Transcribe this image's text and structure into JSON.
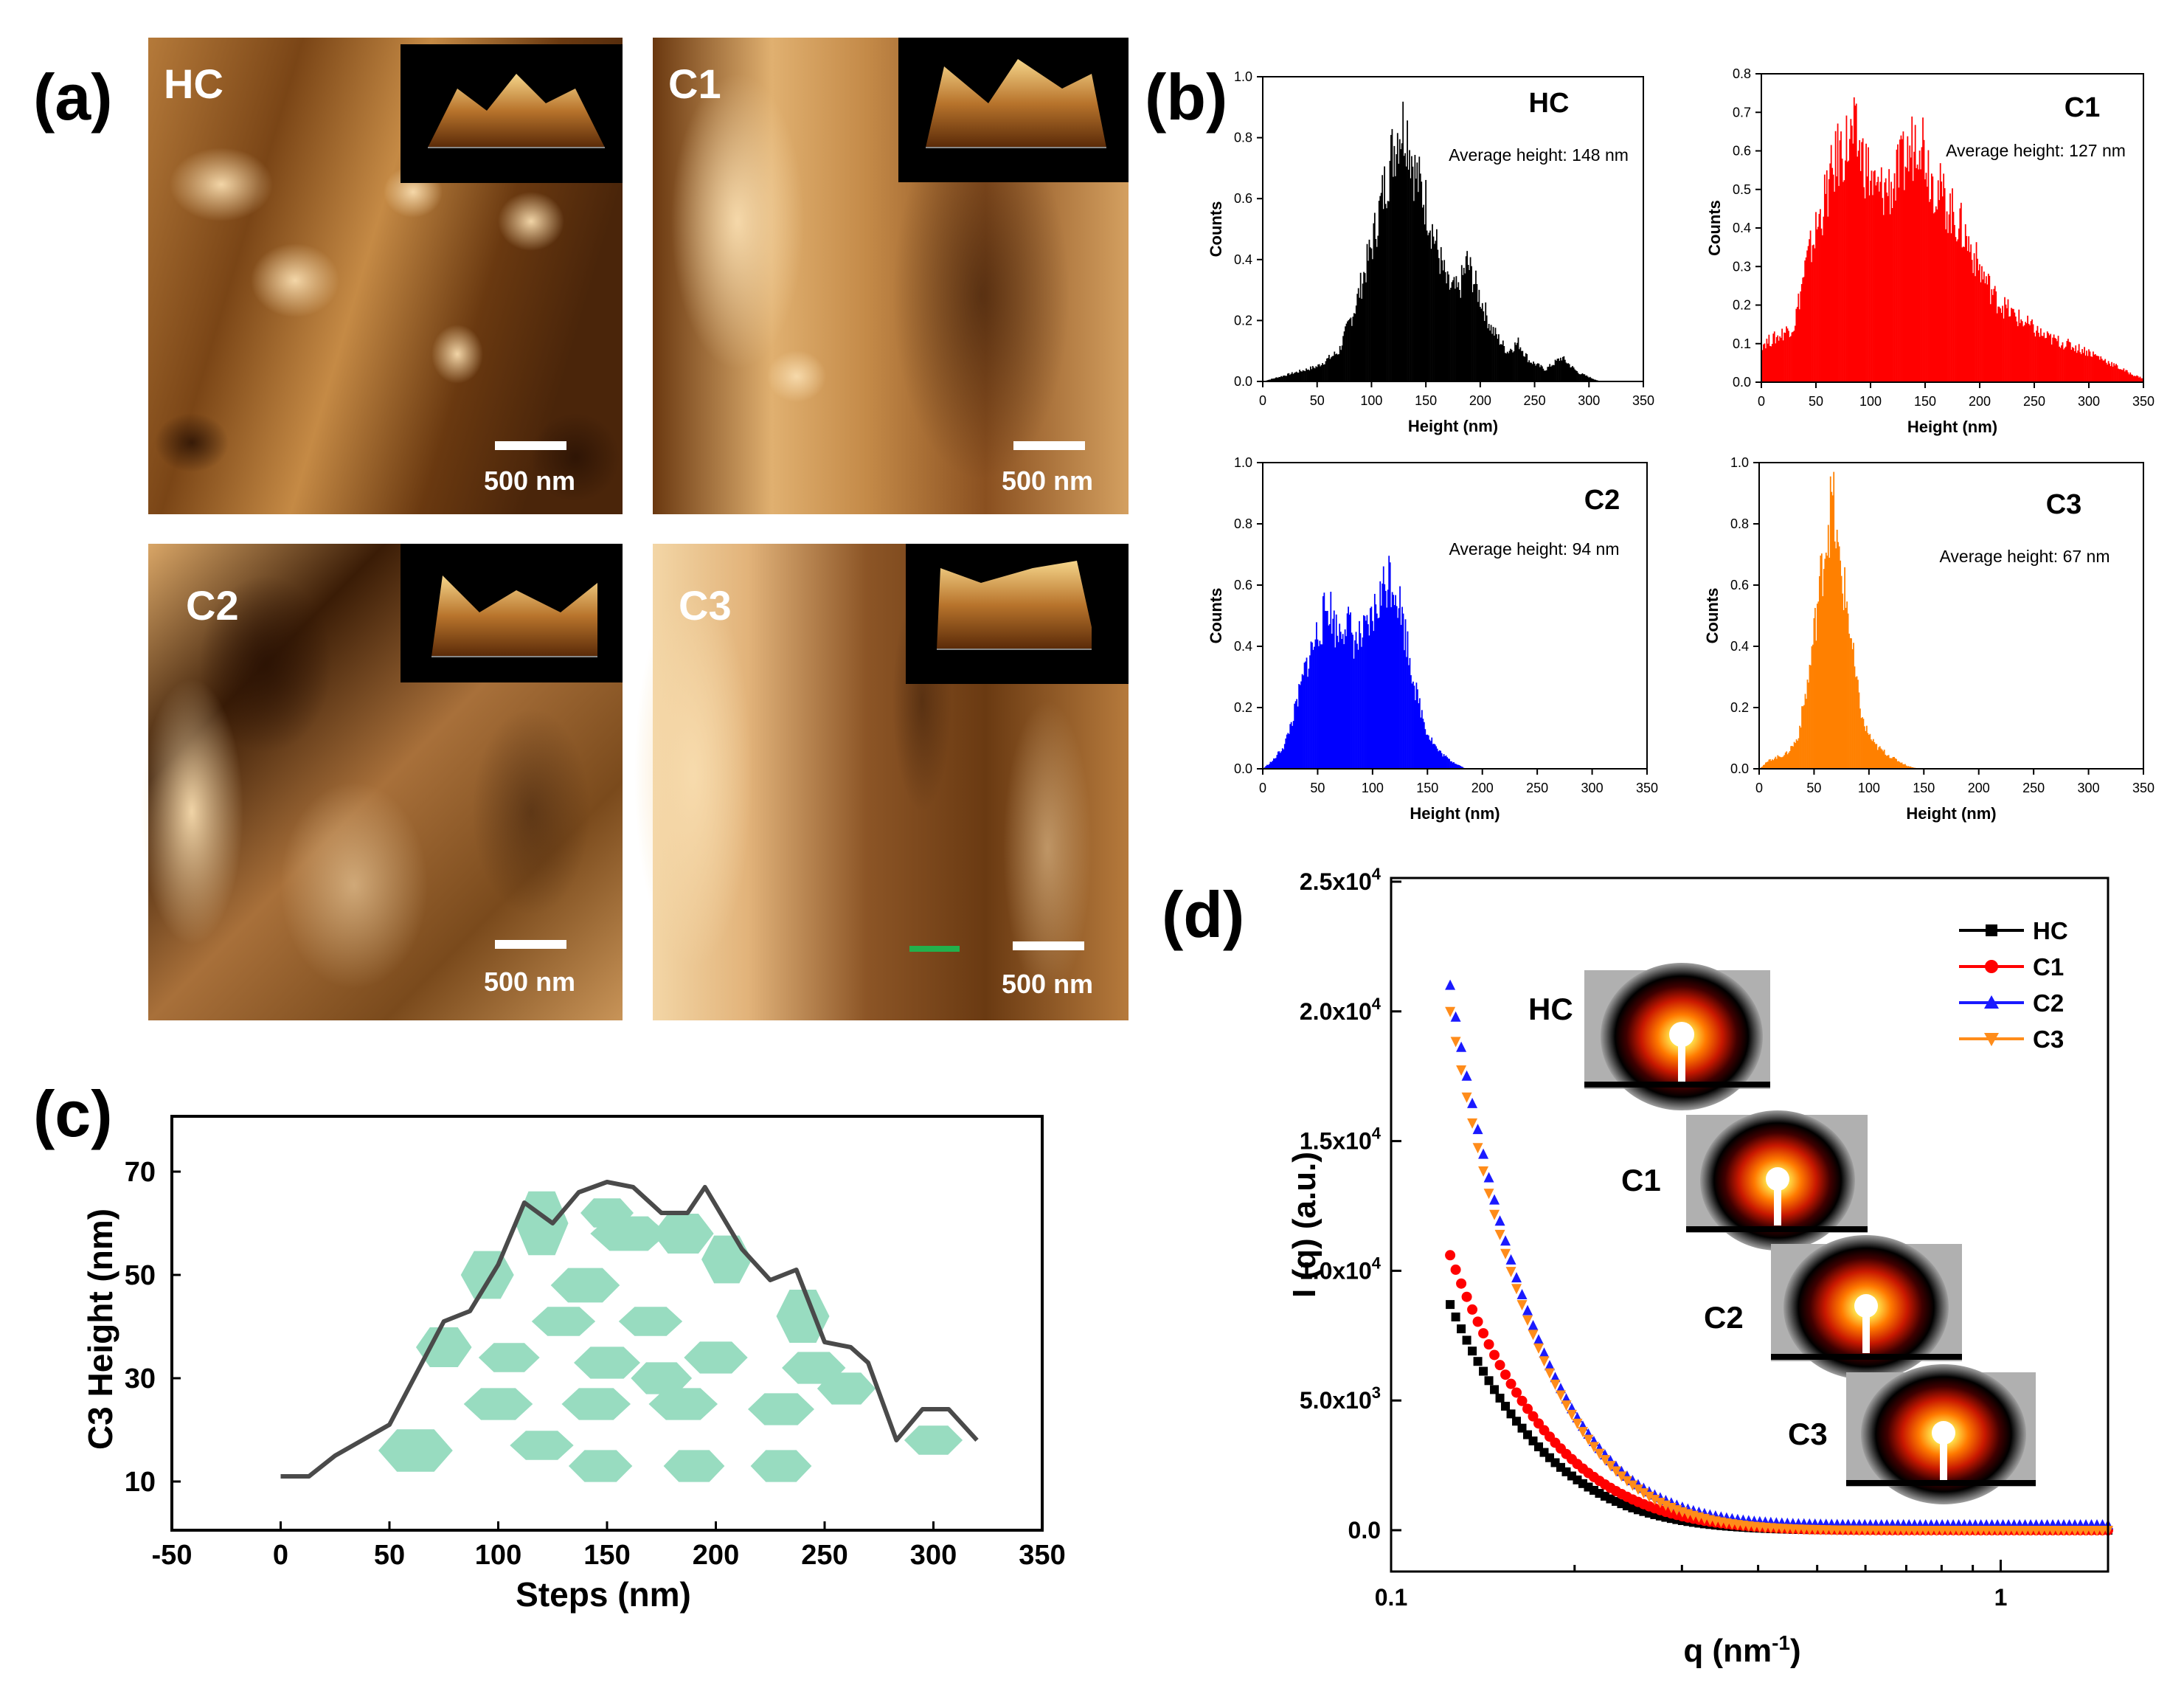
{
  "panel_a": {
    "label": "(a)",
    "images": [
      {
        "name": "HC",
        "scale_bar": "500 nm"
      },
      {
        "name": "C1",
        "scale_bar": "500 nm"
      },
      {
        "name": "C2",
        "scale_bar": "500 nm"
      },
      {
        "name": "C3",
        "scale_bar": "500 nm"
      }
    ],
    "colors": {
      "afm_dark": "#3a1f08",
      "afm_mid": "#9a5a1e",
      "afm_light": "#f6d7a6"
    }
  },
  "panel_b": {
    "label": "(b)",
    "xlabel": "Height (nm)",
    "ylabel": "Counts"
  },
  "panel_c": {
    "label": "(c)",
    "fill_color": "#98dcc0"
  },
  "panel_d": {
    "label": "(d)",
    "saxs_images": [
      "HC",
      "C1",
      "C2",
      "C3"
    ]
  },
  "chart_data": [
    {
      "type": "bar",
      "id": "hist-HC",
      "title": "HC",
      "annotation": "Average height: 148 nm",
      "xlabel": "Height (nm)",
      "ylabel": "Counts",
      "xlim": [
        0,
        350
      ],
      "ylim": [
        0,
        1.0
      ],
      "xticks": [
        "0",
        "50",
        "100",
        "150",
        "200",
        "250",
        "300",
        "350"
      ],
      "yticks": [
        "0.0",
        "0.2",
        "0.4",
        "0.6",
        "0.8",
        "1.0"
      ],
      "color": "#000000",
      "profile": [
        [
          0,
          0.0
        ],
        [
          10,
          0.01
        ],
        [
          30,
          0.03
        ],
        [
          50,
          0.05
        ],
        [
          70,
          0.1
        ],
        [
          85,
          0.25
        ],
        [
          100,
          0.45
        ],
        [
          115,
          0.7
        ],
        [
          125,
          0.85
        ],
        [
          132,
          0.86
        ],
        [
          140,
          0.7
        ],
        [
          150,
          0.6
        ],
        [
          160,
          0.45
        ],
        [
          170,
          0.32
        ],
        [
          180,
          0.3
        ],
        [
          188,
          0.4
        ],
        [
          195,
          0.33
        ],
        [
          210,
          0.18
        ],
        [
          225,
          0.1
        ],
        [
          235,
          0.13
        ],
        [
          245,
          0.07
        ],
        [
          260,
          0.04
        ],
        [
          275,
          0.08
        ],
        [
          290,
          0.03
        ],
        [
          310,
          0.0
        ],
        [
          350,
          0.0
        ]
      ]
    },
    {
      "type": "bar",
      "id": "hist-C1",
      "title": "C1",
      "annotation": "Average height: 127 nm",
      "xlabel": "Height (nm)",
      "ylabel": "Counts",
      "xlim": [
        0,
        350
      ],
      "ylim": [
        0,
        0.8
      ],
      "xticks": [
        "0",
        "50",
        "100",
        "150",
        "200",
        "250",
        "300",
        "350"
      ],
      "yticks": [
        "0.0",
        "0.1",
        "0.2",
        "0.3",
        "0.4",
        "0.5",
        "0.6",
        "0.7",
        "0.8"
      ],
      "color": "#ff0000",
      "profile": [
        [
          0,
          0.1
        ],
        [
          15,
          0.12
        ],
        [
          30,
          0.15
        ],
        [
          40,
          0.3
        ],
        [
          55,
          0.45
        ],
        [
          70,
          0.6
        ],
        [
          85,
          0.65
        ],
        [
          95,
          0.58
        ],
        [
          105,
          0.5
        ],
        [
          120,
          0.52
        ],
        [
          135,
          0.6
        ],
        [
          145,
          0.68
        ],
        [
          155,
          0.55
        ],
        [
          170,
          0.47
        ],
        [
          185,
          0.4
        ],
        [
          200,
          0.3
        ],
        [
          215,
          0.22
        ],
        [
          230,
          0.18
        ],
        [
          245,
          0.15
        ],
        [
          260,
          0.12
        ],
        [
          280,
          0.1
        ],
        [
          300,
          0.08
        ],
        [
          320,
          0.05
        ],
        [
          340,
          0.02
        ],
        [
          350,
          0.01
        ]
      ]
    },
    {
      "type": "bar",
      "id": "hist-C2",
      "title": "C2",
      "annotation": "Average height: 94 nm",
      "xlabel": "Height (nm)",
      "ylabel": "Counts",
      "xlim": [
        0,
        350
      ],
      "ylim": [
        0,
        1.0
      ],
      "xticks": [
        "0",
        "50",
        "100",
        "150",
        "200",
        "250",
        "300",
        "350"
      ],
      "yticks": [
        "0.0",
        "0.2",
        "0.4",
        "0.6",
        "0.8",
        "1.0"
      ],
      "color": "#0000ff",
      "profile": [
        [
          0,
          0.0
        ],
        [
          10,
          0.03
        ],
        [
          20,
          0.08
        ],
        [
          30,
          0.2
        ],
        [
          40,
          0.35
        ],
        [
          50,
          0.45
        ],
        [
          60,
          0.55
        ],
        [
          68,
          0.45
        ],
        [
          75,
          0.5
        ],
        [
          85,
          0.42
        ],
        [
          95,
          0.45
        ],
        [
          105,
          0.55
        ],
        [
          115,
          0.65
        ],
        [
          122,
          0.6
        ],
        [
          130,
          0.45
        ],
        [
          140,
          0.25
        ],
        [
          150,
          0.12
        ],
        [
          160,
          0.06
        ],
        [
          170,
          0.03
        ],
        [
          185,
          0.0
        ],
        [
          350,
          0.0
        ]
      ]
    },
    {
      "type": "bar",
      "id": "hist-C3",
      "title": "C3",
      "annotation": "Average height: 67 nm",
      "xlabel": "Height (nm)",
      "ylabel": "Counts",
      "xlim": [
        0,
        350
      ],
      "ylim": [
        0,
        1.0
      ],
      "xticks": [
        "0",
        "50",
        "100",
        "150",
        "200",
        "250",
        "300",
        "350"
      ],
      "yticks": [
        "0.0",
        "0.2",
        "0.4",
        "0.6",
        "0.8",
        "1.0"
      ],
      "color": "#ff8000",
      "profile": [
        [
          0,
          0.0
        ],
        [
          10,
          0.03
        ],
        [
          25,
          0.05
        ],
        [
          35,
          0.1
        ],
        [
          45,
          0.3
        ],
        [
          55,
          0.6
        ],
        [
          62,
          0.8
        ],
        [
          67,
          0.9
        ],
        [
          72,
          0.7
        ],
        [
          80,
          0.55
        ],
        [
          88,
          0.3
        ],
        [
          95,
          0.15
        ],
        [
          105,
          0.08
        ],
        [
          120,
          0.04
        ],
        [
          135,
          0.01
        ],
        [
          145,
          0.0
        ],
        [
          350,
          0.0
        ]
      ]
    },
    {
      "type": "line",
      "id": "c3-height-profile",
      "xlabel": "Steps (nm)",
      "ylabel": "C3 Height (nm)",
      "xlim": [
        -50,
        350
      ],
      "ylim": [
        0,
        80
      ],
      "xticks": [
        "-50",
        "0",
        "50",
        "100",
        "150",
        "200",
        "250",
        "300",
        "350"
      ],
      "yticks": [
        "10",
        "30",
        "50",
        "70"
      ],
      "line_color": "#4a4a4a",
      "x": [
        0,
        13,
        25,
        50,
        75,
        87,
        100,
        112,
        125,
        137,
        150,
        162,
        175,
        187,
        195,
        212,
        225,
        237,
        250,
        262,
        270,
        283,
        295,
        307,
        320
      ],
      "y": [
        11,
        11,
        15,
        21,
        41,
        43,
        52,
        64,
        60,
        66,
        68,
        67,
        62,
        62,
        67,
        55,
        49,
        51,
        37,
        36,
        33,
        18,
        24,
        24,
        18
      ]
    },
    {
      "type": "scatter",
      "id": "saxs-intensity",
      "xlabel": "q (nm",
      "xlabel_sup": "-1",
      "xlabel_end": ")",
      "ylabel": "I (q) (a.u.)",
      "xscale": "log",
      "xlim": [
        0.1,
        1.5
      ],
      "ylim": [
        -1500,
        25000
      ],
      "xticks": [
        "0.1",
        "1"
      ],
      "yticks": [
        {
          "value": 0,
          "label": "0.0"
        },
        {
          "value": 5000,
          "label": "5.0x10",
          "exp": "3"
        },
        {
          "value": 10000,
          "label": "1.0x10",
          "exp": "4"
        },
        {
          "value": 15000,
          "label": "1.5x10",
          "exp": "4"
        },
        {
          "value": 20000,
          "label": "2.0x10",
          "exp": "4"
        },
        {
          "value": 25000,
          "label": "2.5x10",
          "exp": "4"
        }
      ],
      "series": [
        {
          "name": "HC",
          "color": "#000000",
          "marker": "square",
          "q0": 0.125,
          "I0": 8700,
          "base": 0,
          "decay": 12
        },
        {
          "name": "C1",
          "color": "#ff0000",
          "marker": "circle",
          "q0": 0.125,
          "I0": 10600,
          "base": 0,
          "decay": 11
        },
        {
          "name": "C2",
          "color": "#1a1aff",
          "marker": "triangle-up",
          "q0": 0.125,
          "I0": 21000,
          "base": 200,
          "decay": 13.5
        },
        {
          "name": "C3",
          "color": "#ff8c1a",
          "marker": "triangle-down",
          "q0": 0.125,
          "I0": 20000,
          "base": 0,
          "decay": 13
        }
      ]
    }
  ]
}
